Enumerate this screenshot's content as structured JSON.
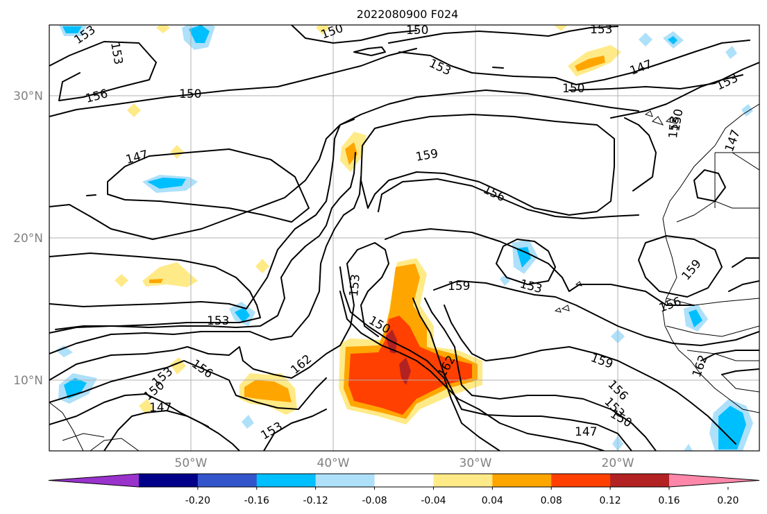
{
  "title": "2022080900 F024",
  "map": {
    "lon_ticks": [
      "50°W",
      "40°W",
      "30°W",
      "20°W"
    ],
    "lat_ticks": [
      "30°N",
      "20°N",
      "10°N"
    ],
    "extent": {
      "lon_min": -60,
      "lon_max": -10,
      "lat_min": 5,
      "lat_max": 35
    },
    "grid": true
  },
  "colorbar": {
    "tick_labels": [
      "-0.20",
      "-0.16",
      "-0.12",
      "-0.08",
      "-0.04",
      "0.04",
      "0.08",
      "0.12",
      "0.16",
      "0.20"
    ],
    "colors": [
      "#9933cc",
      "#000088",
      "#3355cc",
      "#00bfff",
      "#aee0fa",
      "#ffffff",
      "#ffea88",
      "#ffa500",
      "#ff4000",
      "#b22222",
      "#ff88aa"
    ],
    "extend": "both"
  },
  "contour_labels": [
    "153",
    "153",
    "150",
    "150",
    "153",
    "156",
    "150",
    "153",
    "147",
    "150",
    "153",
    "153",
    "147",
    "159",
    "156",
    "150",
    "147",
    "153",
    "159",
    "153",
    "153",
    "150",
    "162",
    "159",
    "156",
    "162",
    "159",
    "156",
    "153",
    "150",
    "147",
    "156",
    "153",
    "150",
    "147",
    "162",
    "153"
  ],
  "fill_colors": {
    "pale_yellow": "#ffea88",
    "orange": "#ffa500",
    "red_orange": "#ff4000",
    "dark_red": "#b22222",
    "light_blue": "#aee0fa",
    "cyan": "#00bfff"
  }
}
